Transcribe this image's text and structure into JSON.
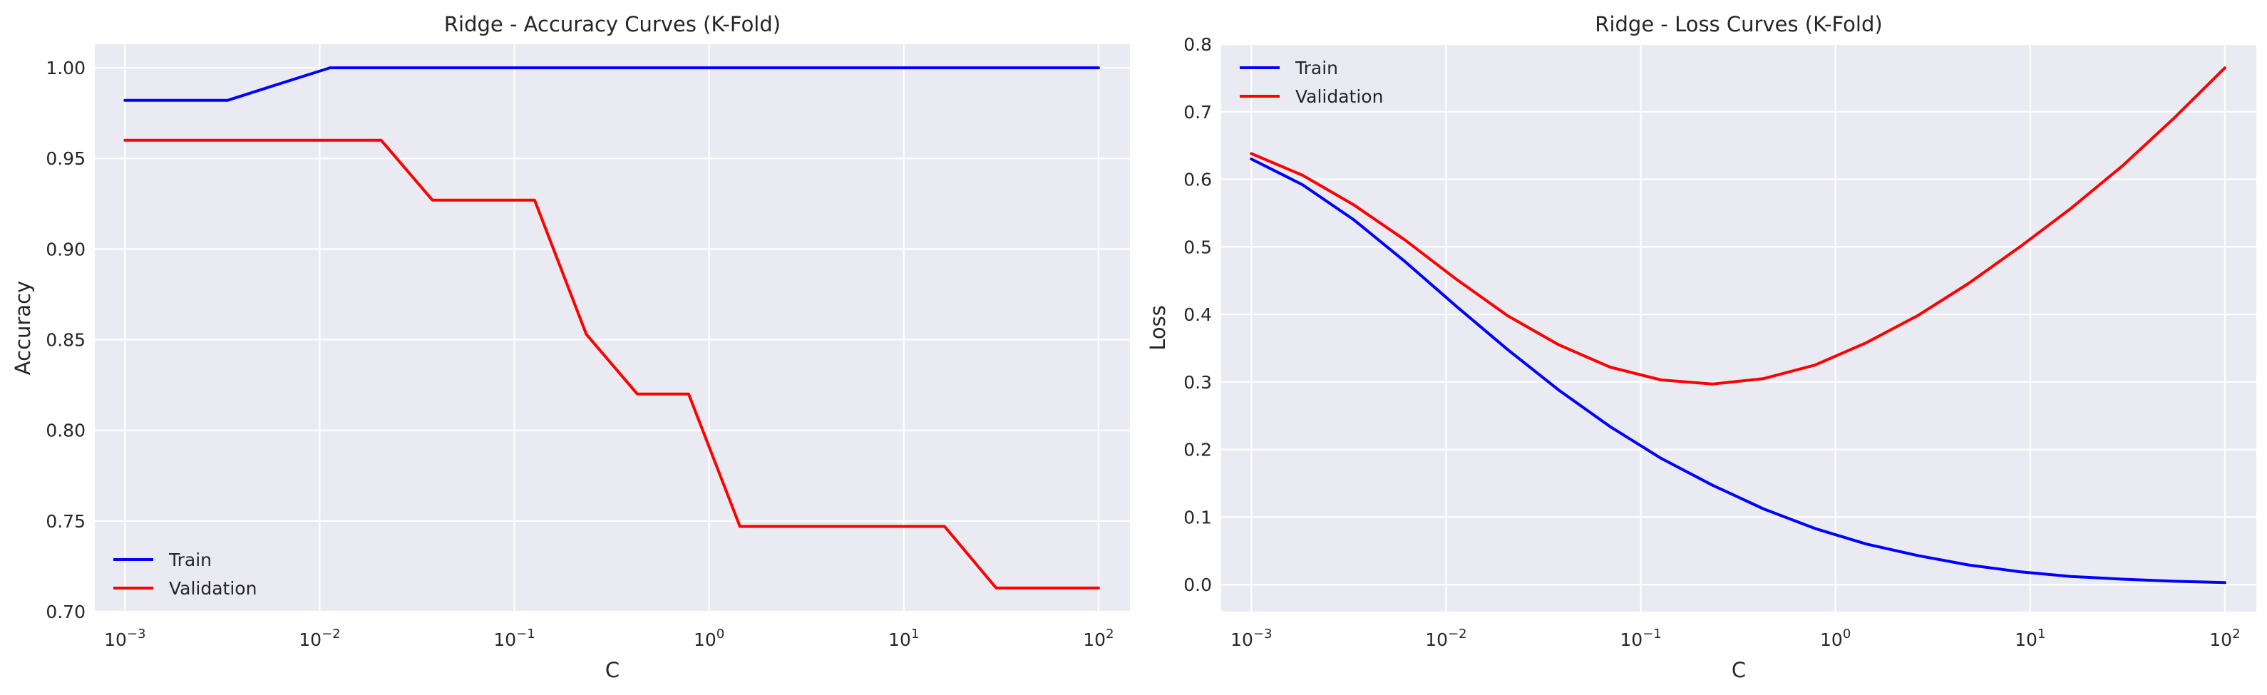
{
  "chart_data": [
    {
      "type": "line",
      "title": "Ridge - Accuracy Curves (K-Fold)",
      "xlabel": "C",
      "ylabel": "Accuracy",
      "xscale": "log",
      "xlim": [
        0.0007,
        145
      ],
      "ylim": [
        0.7,
        1.013
      ],
      "x_ticks": [
        {
          "value": 0.001,
          "base": "10",
          "exp": "−3"
        },
        {
          "value": 0.01,
          "base": "10",
          "exp": "−2"
        },
        {
          "value": 0.1,
          "base": "10",
          "exp": "−1"
        },
        {
          "value": 1,
          "base": "10",
          "exp": "0"
        },
        {
          "value": 10,
          "base": "10",
          "exp": "1"
        },
        {
          "value": 100,
          "base": "10",
          "exp": "2"
        }
      ],
      "y_ticks": [
        "0.70",
        "0.75",
        "0.80",
        "0.85",
        "0.90",
        "0.95",
        "1.00"
      ],
      "grid": true,
      "legend_position": "lower left",
      "series": [
        {
          "name": "Train",
          "color": "#0000ff",
          "x": [
            0.001,
            0.00183,
            0.00336,
            0.00616,
            0.0113,
            0.0207,
            0.0379,
            0.0695,
            0.127,
            0.234,
            0.428,
            0.785,
            1.44,
            2.64,
            4.83,
            8.86,
            16.2,
            29.8,
            54.6,
            100
          ],
          "y": [
            0.982,
            0.982,
            0.982,
            0.991,
            1.0,
            1.0,
            1.0,
            1.0,
            1.0,
            1.0,
            1.0,
            1.0,
            1.0,
            1.0,
            1.0,
            1.0,
            1.0,
            1.0,
            1.0,
            1.0
          ]
        },
        {
          "name": "Validation",
          "color": "#ff0000",
          "x": [
            0.001,
            0.00183,
            0.00336,
            0.00616,
            0.0113,
            0.0207,
            0.0379,
            0.0695,
            0.127,
            0.234,
            0.428,
            0.785,
            1.44,
            2.64,
            4.83,
            8.86,
            16.2,
            29.8,
            54.6,
            100
          ],
          "y": [
            0.96,
            0.96,
            0.96,
            0.96,
            0.96,
            0.96,
            0.927,
            0.927,
            0.927,
            0.853,
            0.82,
            0.82,
            0.747,
            0.747,
            0.747,
            0.747,
            0.747,
            0.713,
            0.713,
            0.713
          ]
        }
      ]
    },
    {
      "type": "line",
      "title": "Ridge - Loss Curves (K-Fold)",
      "xlabel": "C",
      "ylabel": "Loss",
      "xscale": "log",
      "xlim": [
        0.0007,
        145
      ],
      "ylim": [
        -0.04,
        0.8
      ],
      "x_ticks": [
        {
          "value": 0.001,
          "base": "10",
          "exp": "−3"
        },
        {
          "value": 0.01,
          "base": "10",
          "exp": "−2"
        },
        {
          "value": 0.1,
          "base": "10",
          "exp": "−1"
        },
        {
          "value": 1,
          "base": "10",
          "exp": "0"
        },
        {
          "value": 10,
          "base": "10",
          "exp": "1"
        },
        {
          "value": 100,
          "base": "10",
          "exp": "2"
        }
      ],
      "y_ticks": [
        "0.0",
        "0.1",
        "0.2",
        "0.3",
        "0.4",
        "0.5",
        "0.6",
        "0.7",
        "0.8"
      ],
      "grid": true,
      "legend_position": "upper left",
      "series": [
        {
          "name": "Train",
          "color": "#0000ff",
          "x": [
            0.001,
            0.00183,
            0.00336,
            0.00616,
            0.0113,
            0.0207,
            0.0379,
            0.0695,
            0.127,
            0.234,
            0.428,
            0.785,
            1.44,
            2.64,
            4.83,
            8.86,
            16.2,
            29.8,
            54.6,
            100
          ],
          "y": [
            0.63,
            0.592,
            0.54,
            0.478,
            0.412,
            0.348,
            0.288,
            0.234,
            0.187,
            0.147,
            0.112,
            0.083,
            0.06,
            0.043,
            0.029,
            0.019,
            0.012,
            0.008,
            0.005,
            0.003
          ]
        },
        {
          "name": "Validation",
          "color": "#ff0000",
          "x": [
            0.001,
            0.00183,
            0.00336,
            0.00616,
            0.0113,
            0.0207,
            0.0379,
            0.0695,
            0.127,
            0.234,
            0.428,
            0.785,
            1.44,
            2.64,
            4.83,
            8.86,
            16.2,
            29.8,
            54.6,
            100
          ],
          "y": [
            0.638,
            0.606,
            0.562,
            0.51,
            0.452,
            0.398,
            0.355,
            0.322,
            0.303,
            0.297,
            0.305,
            0.325,
            0.358,
            0.398,
            0.446,
            0.5,
            0.557,
            0.62,
            0.69,
            0.765
          ]
        }
      ]
    }
  ]
}
